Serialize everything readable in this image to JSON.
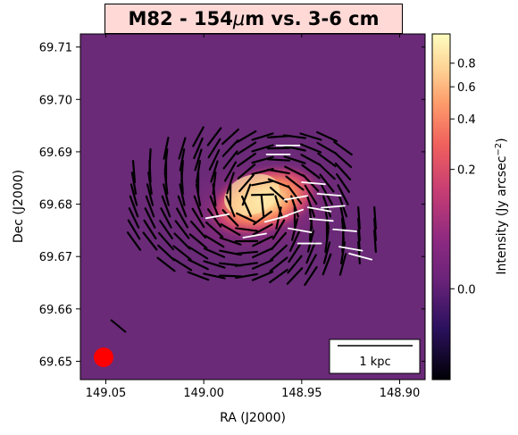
{
  "chart_data": {
    "type": "heatmap",
    "title_parts": [
      "M82 - 154",
      "μ",
      "m vs. 3-6 cm"
    ],
    "xlabel": "RA (J2000)",
    "ylabel": "Dec (J2000)",
    "xlim": [
      149.063,
      148.887
    ],
    "ylim": [
      69.6465,
      69.7125
    ],
    "x_ticks": [
      149.05,
      149.0,
      148.95,
      148.9
    ],
    "x_tick_labels": [
      "149.05",
      "149.00",
      "148.95",
      "148.90"
    ],
    "y_ticks": [
      69.65,
      69.66,
      69.67,
      69.68,
      69.69,
      69.7,
      69.71
    ],
    "y_tick_labels": [
      "69.65",
      "69.66",
      "69.67",
      "69.68",
      "69.69",
      "69.70",
      "69.71"
    ],
    "colorbar": {
      "label": "Intensity (Jy arcsec",
      "label_sup": "−2",
      "label_end": ")",
      "scale": "asinh",
      "ticks": [
        0.0,
        0.2,
        0.4,
        0.6,
        0.8
      ],
      "tick_labels": [
        "0.0",
        "0.2",
        "0.4",
        "0.6",
        "0.8"
      ],
      "colors": [
        "#000004",
        "#3b0f70",
        "#8c2981",
        "#de4968",
        "#fe9f6d",
        "#fcfdbf"
      ]
    },
    "background_color": "#6a2a78",
    "scalebar_label": "1 kpc",
    "beam_color": "#ff0000",
    "vector_colors": {
      "far_ir": "#000000",
      "radio": "#ffffff"
    },
    "radio_vectors": [
      [
        148.957,
        69.6912,
        90
      ],
      [
        148.962,
        69.6895,
        90
      ],
      [
        148.944,
        69.684,
        95
      ],
      [
        148.936,
        69.6818,
        95
      ],
      [
        148.953,
        69.6812,
        80
      ],
      [
        148.941,
        69.679,
        100
      ],
      [
        148.955,
        69.6782,
        70
      ],
      [
        148.934,
        69.6795,
        85
      ],
      [
        148.963,
        69.6772,
        75
      ],
      [
        148.94,
        69.677,
        95
      ],
      [
        148.951,
        69.675,
        100
      ],
      [
        148.974,
        69.674,
        80
      ],
      [
        148.928,
        69.675,
        95
      ],
      [
        148.993,
        69.6777,
        80
      ],
      [
        148.925,
        69.6715,
        100
      ],
      [
        148.92,
        69.67,
        105
      ],
      [
        148.946,
        69.6725,
        90
      ]
    ]
  }
}
